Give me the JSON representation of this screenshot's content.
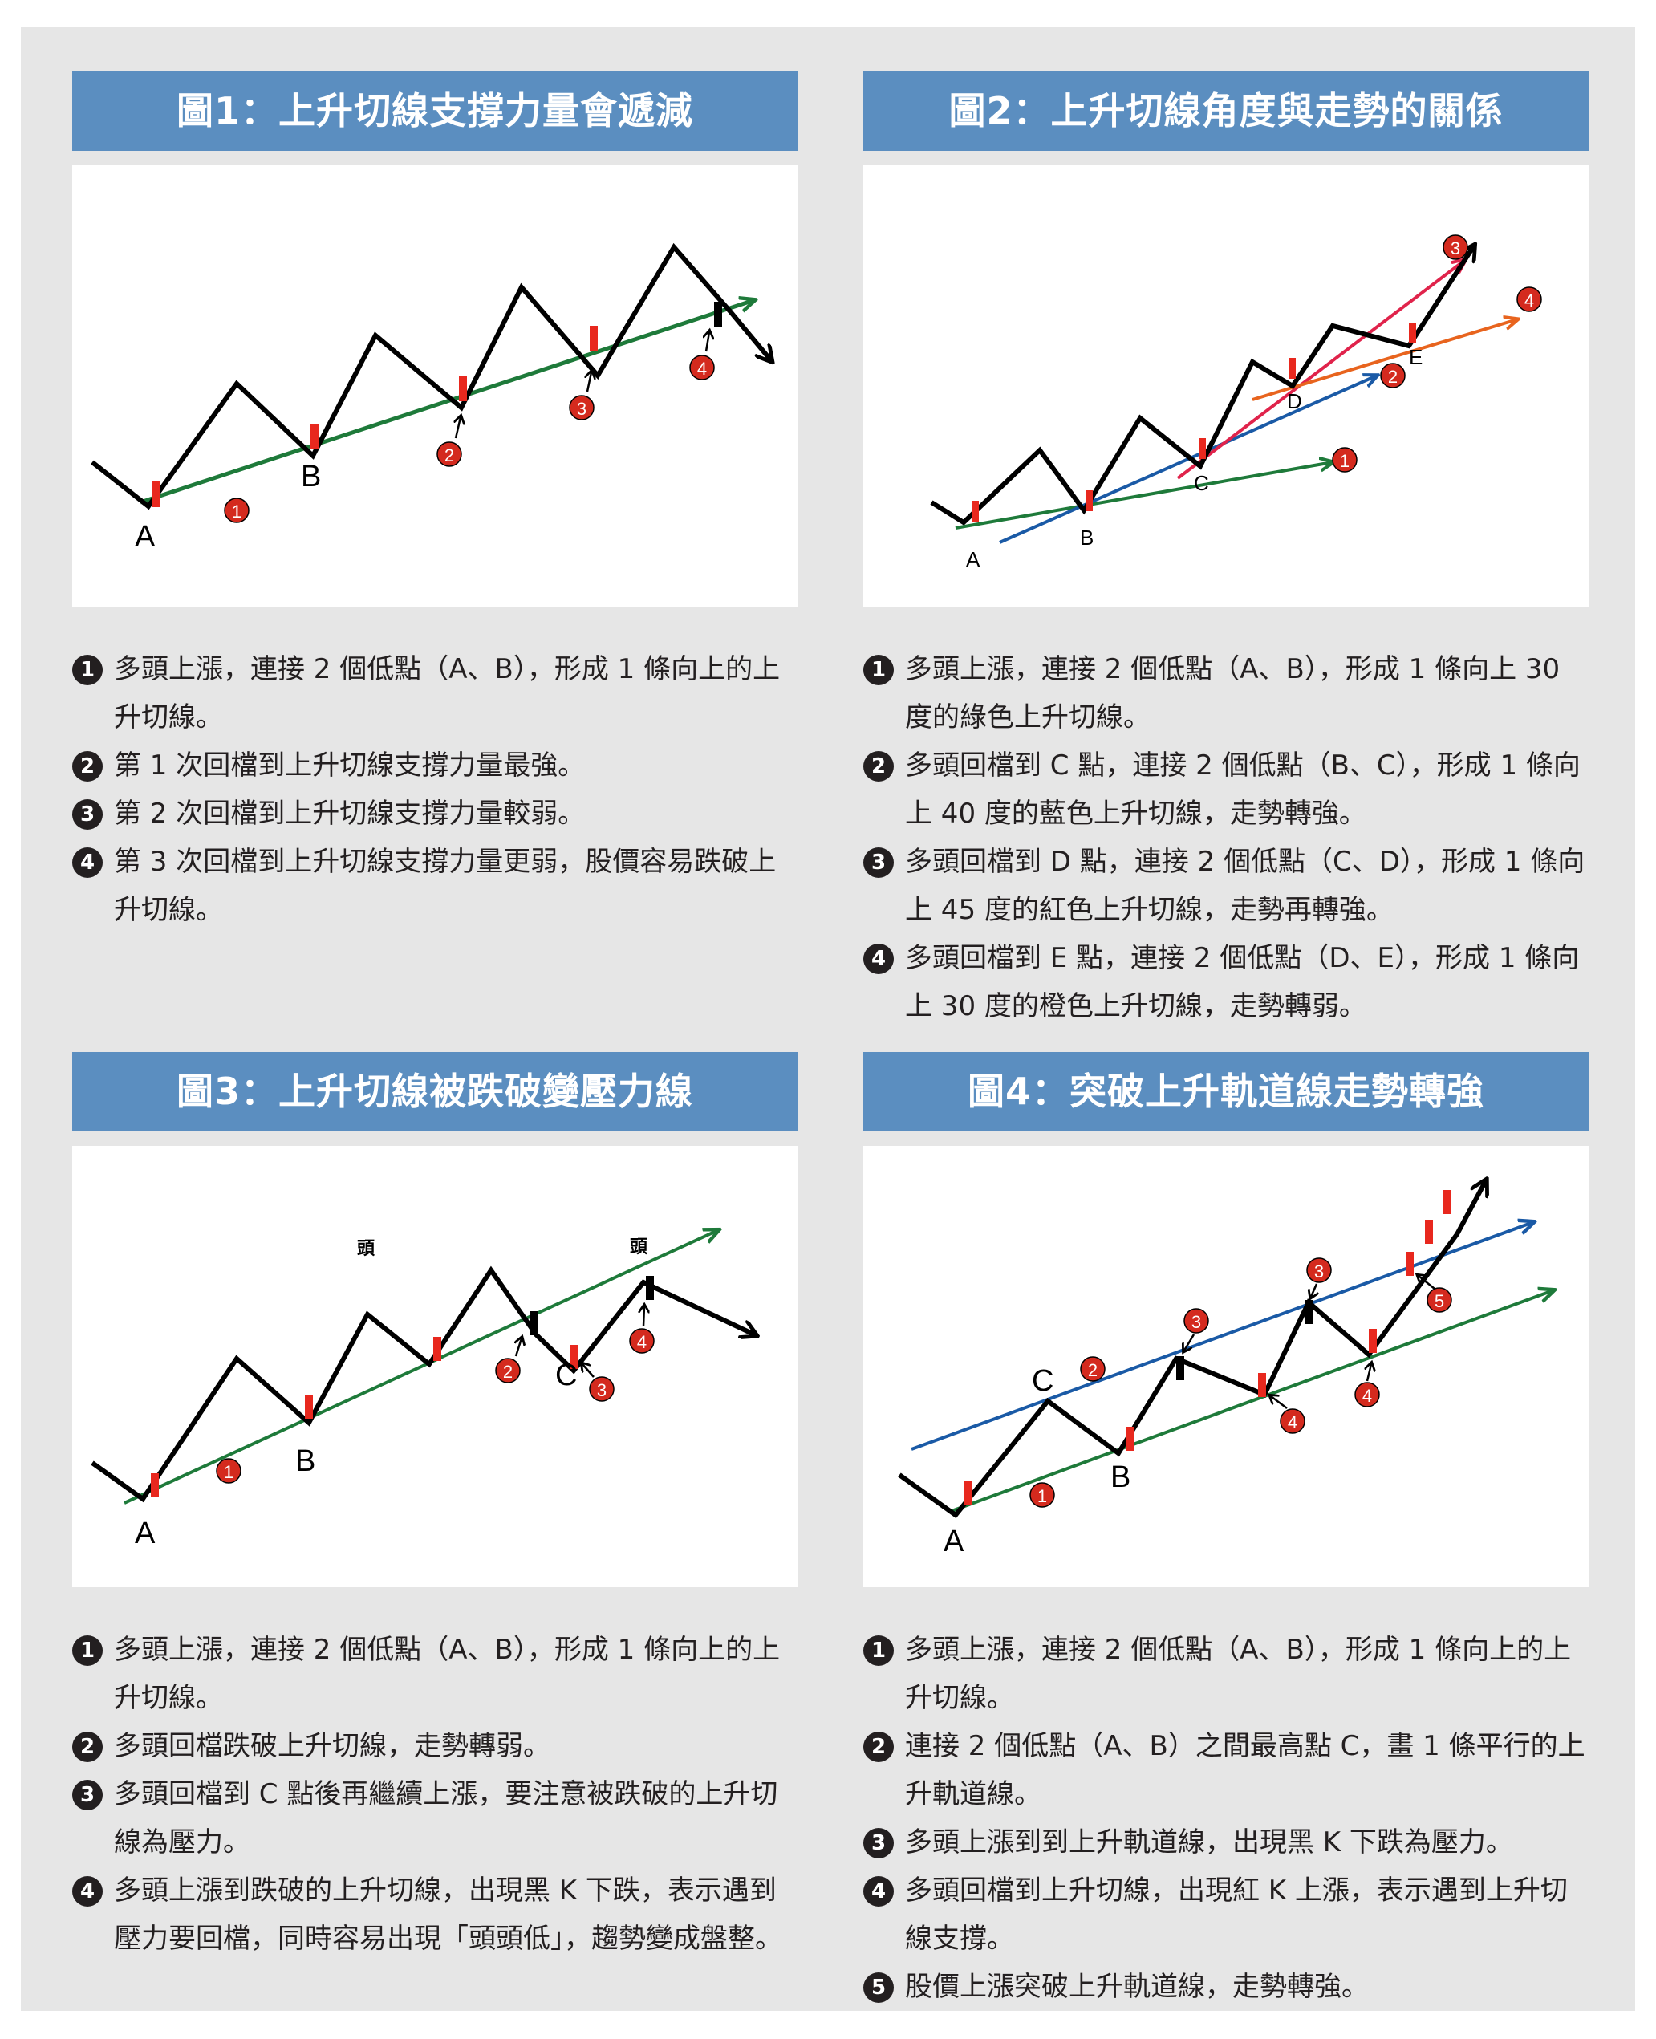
{
  "colors": {
    "title_bg": "#5b8ec0",
    "green": "#1e7a3a",
    "blue": "#1a5aa6",
    "red_line": "#e0234b",
    "orange": "#e8641e",
    "candle_red": "#e8281e",
    "marker_red": "#d42a1e"
  },
  "panels": [
    {
      "title": "圖1：上升切線支撐力量會遞減",
      "labels": {
        "A": "A",
        "B": "B"
      },
      "markers": [
        "1",
        "2",
        "3",
        "4"
      ],
      "notes": [
        {
          "num": "1",
          "text": "多頭上漲，連接 2 個低點（A、B），形成 1 條向上的上升切線。"
        },
        {
          "num": "2",
          "text": "第 1 次回檔到上升切線支撐力量最強。"
        },
        {
          "num": "3",
          "text": "第 2 次回檔到上升切線支撐力量較弱。"
        },
        {
          "num": "4",
          "text": "第 3 次回檔到上升切線支撐力量更弱，股價容易跌破上升切線。"
        }
      ]
    },
    {
      "title": "圖2：上升切線角度與走勢的關係",
      "labels": {
        "A": "A",
        "B": "B",
        "C": "C",
        "D": "D",
        "E": "E"
      },
      "markers": [
        "1",
        "2",
        "3",
        "4"
      ],
      "notes": [
        {
          "num": "1",
          "text": "多頭上漲，連接 2 個低點（A、B），形成 1 條向上 30 度的綠色上升切線。"
        },
        {
          "num": "2",
          "text": "多頭回檔到 C 點，連接 2 個低點（B、C），形成 1 條向上 40 度的藍色上升切線，走勢轉強。"
        },
        {
          "num": "3",
          "text": "多頭回檔到 D 點，連接 2 個低點（C、D），形成 1 條向上 45 度的紅色上升切線，走勢再轉強。"
        },
        {
          "num": "4",
          "text": "多頭回檔到 E 點，連接 2 個低點（D、E），形成 1 條向上 30 度的橙色上升切線，走勢轉弱。"
        }
      ]
    },
    {
      "title": "圖3：上升切線被跌破變壓力線",
      "labels": {
        "A": "A",
        "B": "B",
        "C": "C",
        "head1": "頭",
        "head2": "頭"
      },
      "markers": [
        "1",
        "2",
        "3",
        "4"
      ],
      "notes": [
        {
          "num": "1",
          "text": "多頭上漲，連接 2 個低點（A、B），形成 1 條向上的上升切線。"
        },
        {
          "num": "2",
          "text": "多頭回檔跌破上升切線，走勢轉弱。"
        },
        {
          "num": "3",
          "text": "多頭回檔到 C 點後再繼續上漲，要注意被跌破的上升切線為壓力。"
        },
        {
          "num": "4",
          "text": "多頭上漲到跌破的上升切線，出現黑 K 下跌，表示遇到壓力要回檔，同時容易出現「頭頭低」，趨勢變成盤整。"
        }
      ]
    },
    {
      "title": "圖4：突破上升軌道線走勢轉強",
      "labels": {
        "A": "A",
        "B": "B",
        "C": "C"
      },
      "markers": [
        "1",
        "2",
        "3",
        "4",
        "5"
      ],
      "notes": [
        {
          "num": "1",
          "text": "多頭上漲，連接 2 個低點（A、B），形成 1 條向上的上升切線。"
        },
        {
          "num": "2",
          "text": "連接 2 個低點（A、B）之間最高點 C，畫 1 條平行的上升軌道線。"
        },
        {
          "num": "3",
          "text": "多頭上漲到到上升軌道線，出現黑 K 下跌為壓力。"
        },
        {
          "num": "4",
          "text": "多頭回檔到上升切線，出現紅 K 上漲，表示遇到上升切線支撐。"
        },
        {
          "num": "5",
          "text": "股價上漲突破上升軌道線，走勢轉強。"
        }
      ]
    }
  ]
}
